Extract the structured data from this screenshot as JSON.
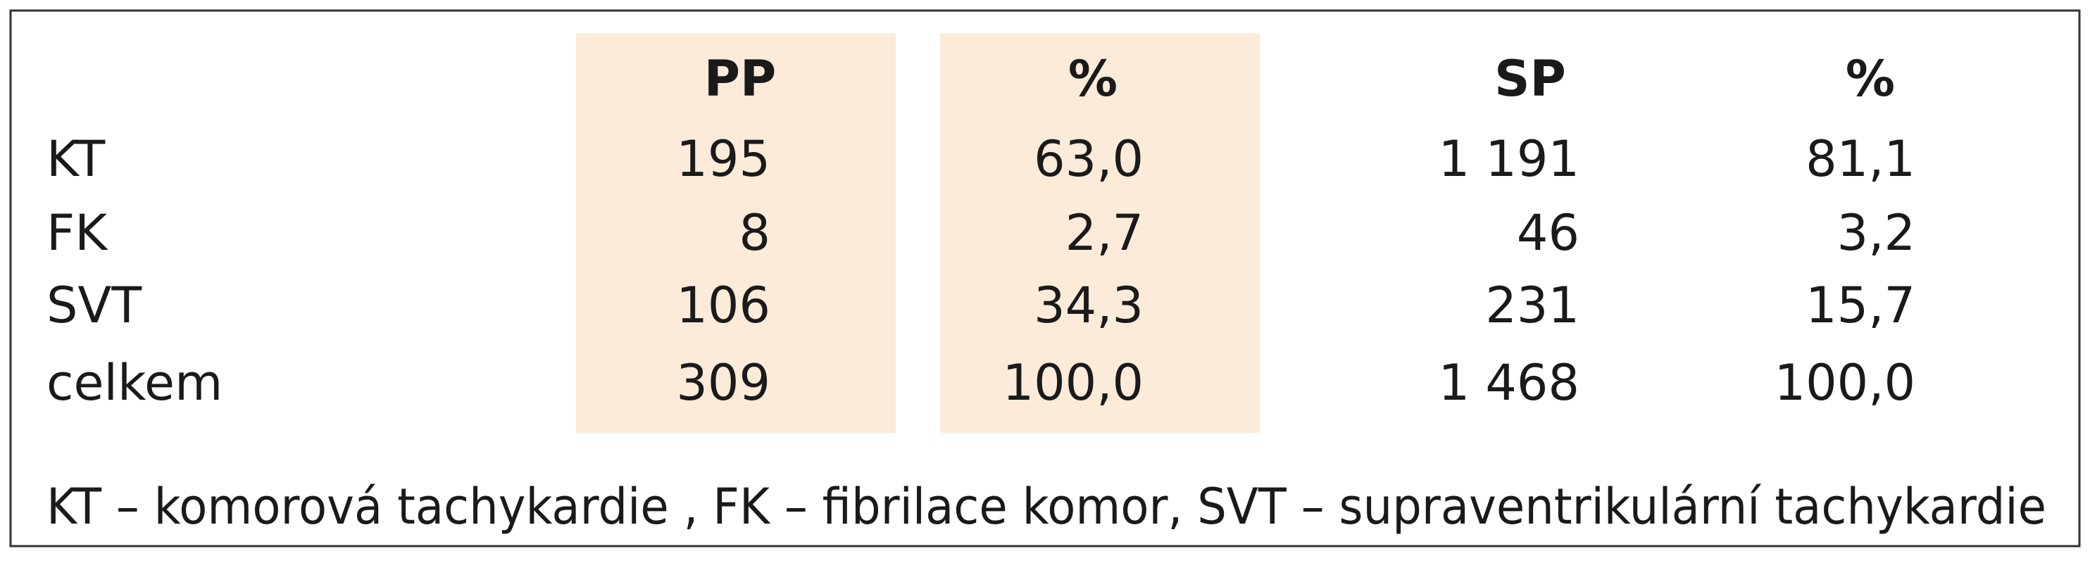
{
  "table": {
    "header": [
      "PP",
      "%",
      "SP",
      "%"
    ],
    "rows": [
      [
        "KT",
        "195",
        "63,0",
        "1 191",
        "81,1"
      ],
      [
        "FK",
        "8",
        "2,7",
        "46",
        "3,2"
      ],
      [
        "SVT",
        "106",
        "34,3",
        "231",
        "15,7"
      ],
      [
        "celkem",
        "309",
        "100,0",
        "1 468",
        "100,0"
      ]
    ],
    "footnote": "KT – komorová tachykardie , FK – fibrilace komor, SVT – supraventrikulární tachykardie"
  }
}
